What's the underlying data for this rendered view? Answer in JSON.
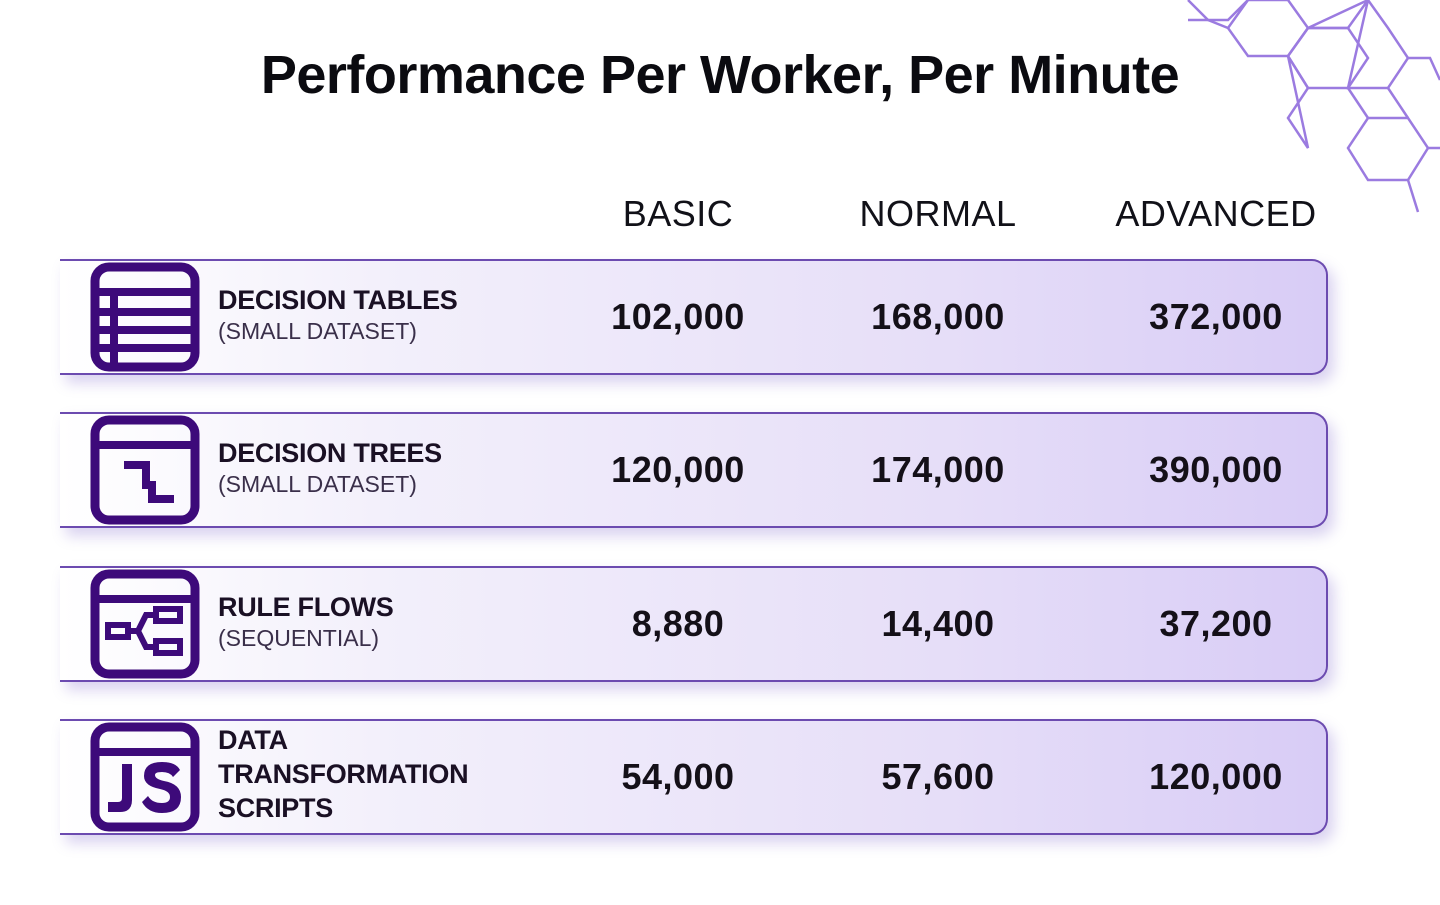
{
  "page": {
    "title": "Performance Per Worker, Per Minute"
  },
  "colors": {
    "accent": "#3d0a7a",
    "border": "#6c4bb0",
    "hex_lines": "#9b7be0"
  },
  "chart_data": {
    "type": "table",
    "title": "Performance Per Worker, Per Minute",
    "columns": [
      "BASIC",
      "NORMAL",
      "ADVANCED"
    ],
    "rows": [
      {
        "icon": "decision-table-icon",
        "label": "DECISION TABLES",
        "sublabel": "(SMALL DATASET)",
        "values": [
          "102,000",
          "168,000",
          "372,000"
        ]
      },
      {
        "icon": "decision-tree-icon",
        "label": "DECISION TREES",
        "sublabel": "(SMALL DATASET)",
        "values": [
          "120,000",
          "174,000",
          "390,000"
        ]
      },
      {
        "icon": "rule-flow-icon",
        "label": "RULE FLOWS",
        "sublabel": "(SEQUENTIAL)",
        "values": [
          "8,880",
          "14,400",
          "37,200"
        ]
      },
      {
        "icon": "javascript-icon",
        "label": "DATA TRANSFORMATION SCRIPTS",
        "label_lines": [
          "DATA",
          "TRANSFORMATION",
          "SCRIPTS"
        ],
        "sublabel": "",
        "values": [
          "54,000",
          "57,600",
          "120,000"
        ]
      }
    ]
  }
}
